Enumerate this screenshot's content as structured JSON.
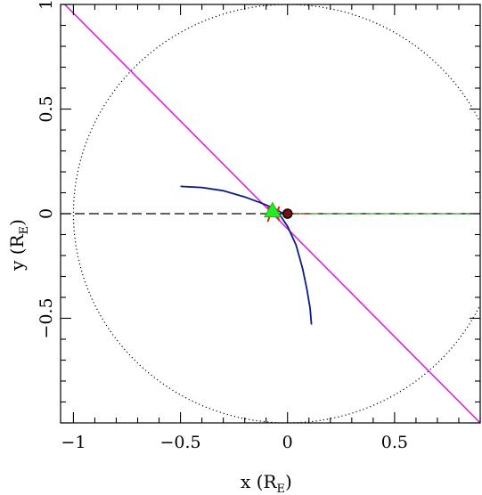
{
  "chart_data": {
    "type": "line",
    "xlabel": "x (R_E)",
    "ylabel": "y (R_E)",
    "xlabel_main": "x (R",
    "xlabel_sub": "E",
    "xlabel_close": ")",
    "ylabel_main": "y (R",
    "ylabel_sub": "E",
    "ylabel_close": ")",
    "xlim": [
      -1.06,
      0.9
    ],
    "ylim": [
      -1.0,
      1.0
    ],
    "x_ticks": [
      {
        "value": -1,
        "label": "−1"
      },
      {
        "value": -0.5,
        "label": "−0.5"
      },
      {
        "value": 0,
        "label": "0"
      },
      {
        "value": 0.5,
        "label": "0.5"
      }
    ],
    "y_ticks": [
      {
        "value": 1,
        "label": "1"
      },
      {
        "value": 0.5,
        "label": "0.5"
      },
      {
        "value": 0,
        "label": "0"
      },
      {
        "value": -0.5,
        "label": "−0.5"
      }
    ],
    "grid": false,
    "legend": "none",
    "series": [
      {
        "kind": "magenta-line",
        "color": "#e020e0",
        "x": [
          -1.06,
          0.9
        ],
        "y": [
          1.02,
          -1.0
        ]
      },
      {
        "kind": "dotted-circle",
        "color": "#000000",
        "center": [
          0,
          0
        ],
        "radius": 1.0
      },
      {
        "kind": "dashed-line",
        "color": "#000000",
        "x": [
          -1.06,
          0.9
        ],
        "y": [
          0,
          0
        ]
      },
      {
        "kind": "dashed-green",
        "color": "#33aa33",
        "x": [
          0.0,
          0.9
        ],
        "y": [
          0,
          0
        ]
      },
      {
        "kind": "blue-curve-upper",
        "color": "#0a1a8c",
        "x": [
          -0.5,
          -0.4,
          -0.3,
          -0.2,
          -0.12,
          -0.06,
          -0.02
        ],
        "y": [
          0.13,
          0.125,
          0.11,
          0.08,
          0.05,
          0.025,
          0.0
        ]
      },
      {
        "kind": "blue-curve-lower",
        "color": "#0a1a8c",
        "x": [
          -0.04,
          0.0,
          0.04,
          0.07,
          0.09,
          0.105,
          0.112
        ],
        "y": [
          0.0,
          -0.06,
          -0.15,
          -0.26,
          -0.36,
          -0.45,
          -0.53
        ]
      },
      {
        "kind": "red-marks",
        "color": "#d03010",
        "x": [
          -0.08,
          0.11
        ],
        "y": [
          0,
          0
        ]
      },
      {
        "kind": "green-triangle",
        "color": "#22ee22",
        "x": -0.07,
        "y": 0.01
      },
      {
        "kind": "black-dot",
        "color": "#000000",
        "x": 0.0,
        "y": 0.0
      }
    ]
  }
}
